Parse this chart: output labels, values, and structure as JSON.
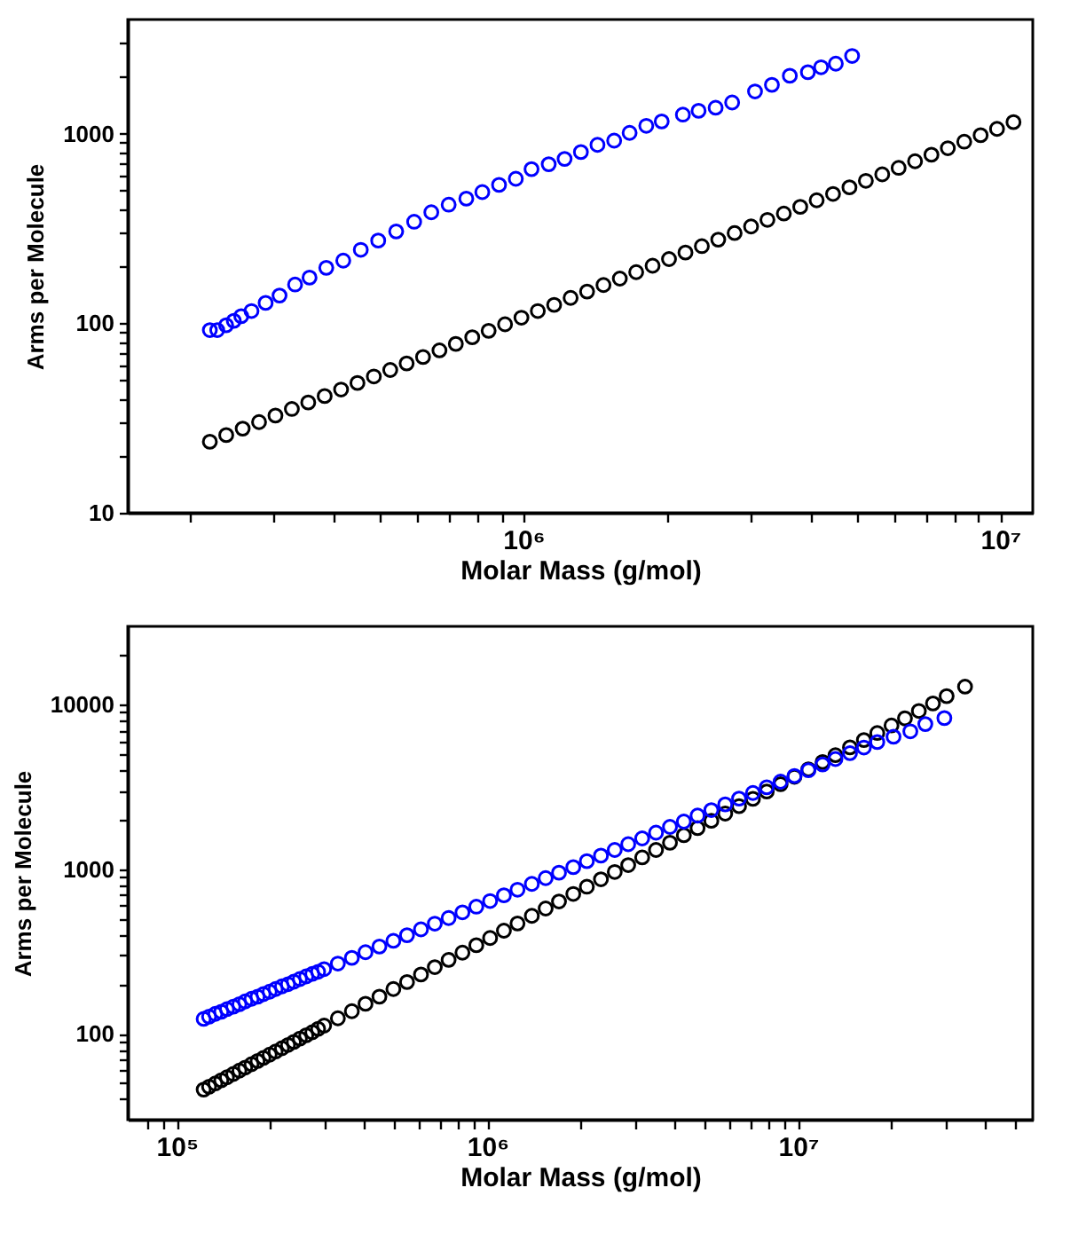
{
  "chart_data": [
    {
      "type": "scatter",
      "xlabel": "Molar Mass (g/mol)",
      "ylabel": "Arms per Molecule",
      "log": "xy",
      "grid": false,
      "marker": "circle",
      "xlim": [
        148000,
        11700000
      ],
      "ylim": [
        10,
        4000
      ],
      "xticks": [
        {
          "value": 200000,
          "label": null
        },
        {
          "value": 300000,
          "label": null
        },
        {
          "value": 400000,
          "label": null
        },
        {
          "value": 500000,
          "label": null
        },
        {
          "value": 600000,
          "label": null
        },
        {
          "value": 700000,
          "label": null
        },
        {
          "value": 800000,
          "label": null
        },
        {
          "value": 900000,
          "label": null
        },
        {
          "value": 1000000,
          "label": "10⁶"
        },
        {
          "value": 2000000,
          "label": null
        },
        {
          "value": 3000000,
          "label": null
        },
        {
          "value": 4000000,
          "label": null
        },
        {
          "value": 5000000,
          "label": null
        },
        {
          "value": 6000000,
          "label": null
        },
        {
          "value": 7000000,
          "label": null
        },
        {
          "value": 8000000,
          "label": null
        },
        {
          "value": 9000000,
          "label": null
        },
        {
          "value": 10000000,
          "label": "10⁷"
        }
      ],
      "yticks": [
        10,
        {
          "value": 20,
          "label": null
        },
        {
          "value": 30,
          "label": null
        },
        {
          "value": 40,
          "label": null
        },
        {
          "value": 50,
          "label": null
        },
        {
          "value": 60,
          "label": null
        },
        {
          "value": 70,
          "label": null
        },
        {
          "value": 80,
          "label": null
        },
        {
          "value": 90,
          "label": null
        },
        100,
        {
          "value": 200,
          "label": null
        },
        {
          "value": 300,
          "label": null
        },
        {
          "value": 400,
          "label": null
        },
        {
          "value": 500,
          "label": null
        },
        {
          "value": 600,
          "label": null
        },
        {
          "value": 700,
          "label": null
        },
        {
          "value": 800,
          "label": null
        },
        {
          "value": 900,
          "label": null
        },
        1000,
        {
          "value": 2000,
          "label": null
        },
        {
          "value": 3000,
          "label": null
        }
      ],
      "series": [
        {
          "color": "#000000",
          "x": [
            220000,
            238100,
            257800,
            279000,
            302000,
            326900,
            353800,
            383000,
            414600,
            448700,
            485700,
            525700,
            569000,
            615900,
            666700,
            721600,
            781100,
            845400,
            915100,
            990500,
            1072000,
            1160000,
            1256000,
            1360000,
            1472000,
            1593000,
            1724000,
            1866000,
            2020000,
            2187000,
            2367000,
            2562000,
            2773000,
            3002000,
            3249000,
            3517000,
            3807000,
            4121000,
            4460000,
            4828000,
            5226000,
            5656000,
            6122000,
            6627000,
            7173000,
            7764000,
            8404000,
            9096000,
            9846000,
            10660000
          ],
          "values": [
            23.7,
            25.7,
            27.8,
            30.1,
            32.6,
            35.3,
            38.2,
            41.3,
            44.7,
            48.4,
            52.4,
            56.7,
            61.4,
            66.4,
            71.9,
            77.8,
            84.3,
            91.2,
            98.7,
            107,
            116,
            125,
            136,
            147,
            159,
            172,
            186,
            201,
            218,
            236,
            255,
            276,
            299,
            324,
            351,
            379,
            411,
            445,
            481,
            521,
            564,
            610,
            660,
            715,
            774,
            838,
            907,
            981,
            1060,
            1150
          ]
        },
        {
          "color": "#0000ff",
          "x": [
            220000,
            228000,
            238000,
            247000,
            256000,
            269000,
            288000,
            308000,
            332000,
            356000,
            386000,
            419000,
            456000,
            496000,
            541000,
            590000,
            641000,
            697000,
            759000,
            820000,
            889000,
            964000,
            1040000,
            1130000,
            1220000,
            1320000,
            1430000,
            1550000,
            1670000,
            1810000,
            1950000,
            2160000,
            2330000,
            2530000,
            2740000,
            3060000,
            3320000,
            3620000,
            3950000,
            4210000,
            4520000,
            4890000
          ],
          "values": [
            92,
            92,
            97.5,
            103,
            109,
            116,
            128,
            140,
            160,
            174,
            196,
            214,
            244,
            273,
            305,
            343,
            385,
            422,
            454,
            492,
            537,
            578,
            650,
            690,
            736,
            800,
            873,
            919,
            1010,
            1100,
            1160,
            1260,
            1320,
            1370,
            1460,
            1670,
            1810,
            2020,
            2110,
            2240,
            2340,
            2570
          ]
        }
      ]
    },
    {
      "type": "scatter",
      "xlabel": "Molar Mass (g/mol)",
      "ylabel": "Arms per Molecule",
      "log": "xy",
      "grid": false,
      "marker": "circle",
      "xlim": [
        69500,
        57000000
      ],
      "ylim": [
        30,
        30000
      ],
      "xticks": [
        {
          "value": 80000,
          "label": null
        },
        {
          "value": 90000,
          "label": null
        },
        {
          "value": 100000,
          "label": "10⁵"
        },
        {
          "value": 200000,
          "label": null
        },
        {
          "value": 300000,
          "label": null
        },
        {
          "value": 400000,
          "label": null
        },
        {
          "value": 500000,
          "label": null
        },
        {
          "value": 600000,
          "label": null
        },
        {
          "value": 700000,
          "label": null
        },
        {
          "value": 800000,
          "label": null
        },
        {
          "value": 900000,
          "label": null
        },
        {
          "value": 1000000,
          "label": "10⁶"
        },
        {
          "value": 2000000,
          "label": null
        },
        {
          "value": 3000000,
          "label": null
        },
        {
          "value": 4000000,
          "label": null
        },
        {
          "value": 5000000,
          "label": null
        },
        {
          "value": 6000000,
          "label": null
        },
        {
          "value": 7000000,
          "label": null
        },
        {
          "value": 8000000,
          "label": null
        },
        {
          "value": 9000000,
          "label": null
        },
        {
          "value": 10000000,
          "label": "10⁷"
        },
        {
          "value": 20000000,
          "label": null
        },
        {
          "value": 30000000,
          "label": null
        },
        {
          "value": 40000000,
          "label": null
        },
        {
          "value": 50000000,
          "label": null
        }
      ],
      "yticks": [
        {
          "value": 40,
          "label": null
        },
        {
          "value": 50,
          "label": null
        },
        {
          "value": 60,
          "label": null
        },
        {
          "value": 70,
          "label": null
        },
        {
          "value": 80,
          "label": null
        },
        {
          "value": 90,
          "label": null
        },
        100,
        {
          "value": 200,
          "label": null
        },
        {
          "value": 300,
          "label": null
        },
        {
          "value": 400,
          "label": null
        },
        {
          "value": 500,
          "label": null
        },
        {
          "value": 600,
          "label": null
        },
        {
          "value": 700,
          "label": null
        },
        {
          "value": 800,
          "label": null
        },
        {
          "value": 900,
          "label": null
        },
        1000,
        {
          "value": 2000,
          "label": null
        },
        {
          "value": 3000,
          "label": null
        },
        {
          "value": 4000,
          "label": null
        },
        {
          "value": 5000,
          "label": null
        },
        {
          "value": 6000,
          "label": null
        },
        {
          "value": 7000,
          "label": null
        },
        {
          "value": 8000,
          "label": null
        },
        {
          "value": 9000,
          "label": null
        },
        10000,
        {
          "value": 20000,
          "label": null
        }
      ],
      "series": [
        {
          "color": "#000000",
          "x": [
            122000,
            127000,
            133000,
            139000,
            145000,
            152000,
            159000,
            166000,
            174000,
            182000,
            190000,
            199000,
            208000,
            218000,
            228000,
            238000,
            249000,
            261000,
            273000,
            285000,
            298000,
            330000,
            366000,
            405000,
            449000,
            498000,
            551000,
            611000,
            677000,
            750000,
            831000,
            921000,
            1020000,
            1130000,
            1250000,
            1390000,
            1540000,
            1700000,
            1890000,
            2090000,
            2320000,
            2570000,
            2840000,
            3150000,
            3490000,
            3870000,
            4290000,
            4750000,
            5260000,
            5830000,
            6460000,
            7160000,
            7930000,
            8790000,
            9740000,
            10800000,
            12000000,
            13200000,
            14700000,
            16300000,
            18000000,
            20000000,
            22100000,
            24500000,
            27200000,
            30100000,
            34500000
          ],
          "values": [
            45.7,
            47.6,
            49.8,
            52.1,
            54.3,
            56.9,
            59.6,
            62.2,
            65.2,
            68.2,
            71.2,
            74.5,
            77.9,
            81.6,
            85.4,
            89.1,
            93.3,
            97.8,
            102,
            107,
            112,
            124,
            137,
            152,
            168,
            187,
            206,
            229,
            254,
            281,
            311,
            345,
            382,
            423,
            468,
            521,
            577,
            637,
            708,
            783,
            869,
            963,
            1060,
            1180,
            1310,
            1450,
            1610,
            1780,
            1970,
            2180,
            2420,
            2680,
            2970,
            3290,
            3650,
            4050,
            4490,
            4940,
            5510,
            6110,
            6740,
            7490,
            8280,
            9180,
            10200,
            11300,
            12900
          ]
        },
        {
          "color": "#0000ff",
          "x": [
            122000,
            127000,
            133000,
            139000,
            145000,
            152000,
            159000,
            166000,
            174000,
            182000,
            190000,
            199000,
            208000,
            218000,
            228000,
            238000,
            249000,
            261000,
            273000,
            285000,
            298000,
            330000,
            366000,
            405000,
            449000,
            498000,
            551000,
            611000,
            677000,
            750000,
            831000,
            921000,
            1020000,
            1130000,
            1250000,
            1390000,
            1540000,
            1700000,
            1890000,
            2090000,
            2320000,
            2570000,
            2840000,
            3150000,
            3490000,
            3870000,
            4290000,
            4750000,
            5260000,
            5830000,
            6460000,
            7160000,
            7930000,
            8790000,
            9740000,
            10800000,
            12000000,
            13200000,
            14700000,
            16300000,
            18000000,
            20300000,
            23000000,
            25700000,
            29600000
          ],
          "values": [
            123,
            127,
            132,
            136,
            141,
            146,
            151,
            157,
            163,
            168,
            174,
            180,
            187,
            194,
            200,
            207,
            215,
            223,
            231,
            238,
            247,
            267,
            289,
            313,
            339,
            367,
            397,
            431,
            467,
            505,
            547,
            592,
            641,
            694,
            751,
            815,
            883,
            953,
            1030,
            1120,
            1210,
            1310,
            1420,
            1540,
            1670,
            1810,
            1950,
            2120,
            2290,
            2480,
            2690,
            2910,
            3150,
            3410,
            3690,
            4000,
            4340,
            4680,
            5080,
            5500,
            5940,
            6400,
            6900,
            7640,
            8310
          ]
        }
      ]
    }
  ]
}
